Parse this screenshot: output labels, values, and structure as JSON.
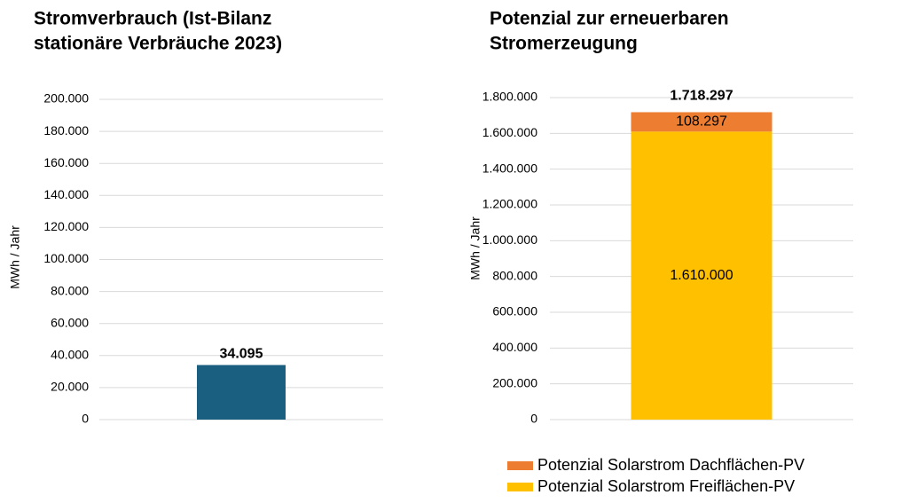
{
  "chart_data": [
    {
      "type": "bar",
      "title": [
        "Stromverbrauch (Ist-Bilanz",
        "stationäre Verbräuche 2023)"
      ],
      "y_label": "MWh / Jahr",
      "categories": [
        null
      ],
      "values": [
        34095
      ],
      "value_labels": [
        "34.095"
      ],
      "color": "#1a5e80",
      "ylim": [
        0,
        200000
      ],
      "yticks": [
        0,
        {
          "value": 20000,
          "label": "20.000"
        },
        {
          "value": 40000,
          "label": "40.000"
        },
        {
          "value": 60000,
          "label": "60.000"
        },
        {
          "value": 80000,
          "label": "80.000"
        },
        {
          "value": 100000,
          "label": "100.000"
        },
        {
          "value": 120000,
          "label": "120.000"
        },
        {
          "value": 140000,
          "label": "140.000"
        },
        {
          "value": 160000,
          "label": "160.000"
        },
        {
          "value": 180000,
          "label": "180.000"
        },
        {
          "value": 200000,
          "label": "200.000"
        }
      ],
      "grid": true
    },
    {
      "type": "stacked_bar",
      "title": [
        "Potenzial zur erneuerbaren",
        "Stromerzeugung"
      ],
      "y_label": "MWh / Jahr",
      "categories": [
        null
      ],
      "series": [
        {
          "name": "Potenzial Solarstrom Freiflächen-PV",
          "color": "#ffc000",
          "values": [
            1610000
          ],
          "value_labels": [
            "1.610.000"
          ]
        },
        {
          "name": "Potenzial Solarstrom Dachflächen-PV",
          "color": "#ed7d31",
          "values": [
            108297
          ],
          "value_labels": [
            "108.297"
          ]
        }
      ],
      "totals": [
        1718297
      ],
      "total_labels": [
        "1.718.297"
      ],
      "ylim": [
        0,
        1800000
      ],
      "yticks": [
        0,
        {
          "value": 200000,
          "label": "200.000"
        },
        {
          "value": 400000,
          "label": "400.000"
        },
        {
          "value": 600000,
          "label": "600.000"
        },
        {
          "value": 800000,
          "label": "800.000"
        },
        {
          "value": 1000000,
          "label": "1.000.000"
        },
        {
          "value": 1200000,
          "label": "1.200.000"
        },
        {
          "value": 1400000,
          "label": "1.400.000"
        },
        {
          "value": 1600000,
          "label": "1.600.000"
        },
        {
          "value": 1800000,
          "label": "1.800.000"
        }
      ],
      "grid": true,
      "legend": "bottom"
    }
  ]
}
